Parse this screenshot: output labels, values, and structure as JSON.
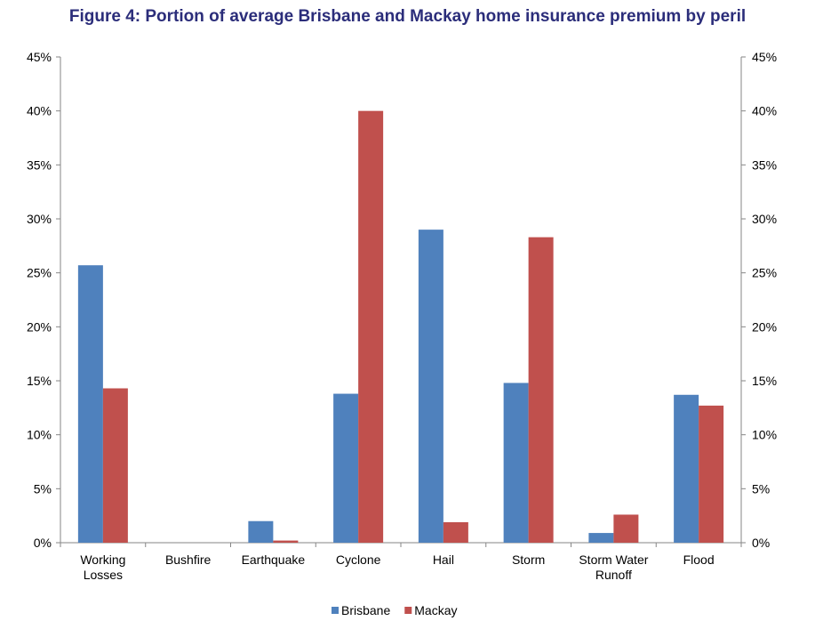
{
  "chart_data": {
    "type": "bar",
    "title": "Figure 4: Portion of average Brisbane and Mackay home insurance premium by peril",
    "categories": [
      "Working Losses",
      "Bushfire",
      "Earthquake",
      "Cyclone",
      "Hail",
      "Storm",
      "Storm Water Runoff",
      "Flood"
    ],
    "category_lines": [
      [
        "Working",
        "Losses"
      ],
      [
        "Bushfire"
      ],
      [
        "Earthquake"
      ],
      [
        "Cyclone"
      ],
      [
        "Hail"
      ],
      [
        "Storm"
      ],
      [
        "Storm Water",
        "Runoff"
      ],
      [
        "Flood"
      ]
    ],
    "series": [
      {
        "name": "Brisbane",
        "color": "#4f81bd",
        "values": [
          25.7,
          0,
          2.0,
          13.8,
          29.0,
          14.8,
          0.9,
          13.7
        ]
      },
      {
        "name": "Mackay",
        "color": "#c0504d",
        "values": [
          14.3,
          0,
          0.2,
          40.0,
          1.9,
          28.3,
          2.6,
          12.7
        ]
      }
    ],
    "ylim": [
      0,
      45
    ],
    "yticks": [
      "0%",
      "5%",
      "10%",
      "15%",
      "20%",
      "25%",
      "30%",
      "35%",
      "40%",
      "45%"
    ],
    "ytick_values": [
      0,
      5,
      10,
      15,
      20,
      25,
      30,
      35,
      40,
      45
    ],
    "secondary_yaxis": true,
    "grid": false,
    "legend_position": "bottom"
  }
}
